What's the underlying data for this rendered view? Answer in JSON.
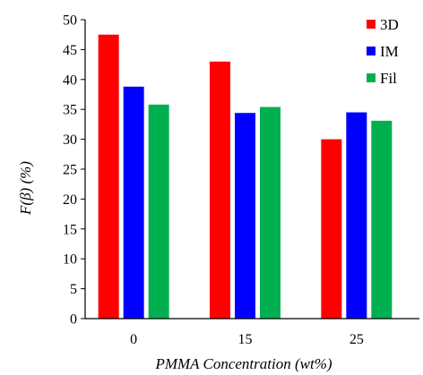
{
  "chart_data": {
    "type": "bar",
    "title": "",
    "xlabel": "PMMA Concentration (wt%)",
    "ylabel": "F(β) (%)",
    "categories": [
      "0",
      "15",
      "25"
    ],
    "series": [
      {
        "name": "3D",
        "color": "#ff0000",
        "values": [
          47.5,
          43.0,
          30.0
        ]
      },
      {
        "name": "IM",
        "color": "#0000ff",
        "values": [
          38.8,
          34.4,
          34.5
        ]
      },
      {
        "name": "Fil",
        "color": "#00b050",
        "values": [
          35.8,
          35.4,
          33.1
        ]
      }
    ],
    "ylim": [
      0,
      50
    ],
    "yticks": [
      "0",
      "5",
      "10",
      "15",
      "20",
      "25",
      "30",
      "35",
      "40",
      "45",
      "50"
    ],
    "grid": false,
    "legend_position": "top-right"
  }
}
